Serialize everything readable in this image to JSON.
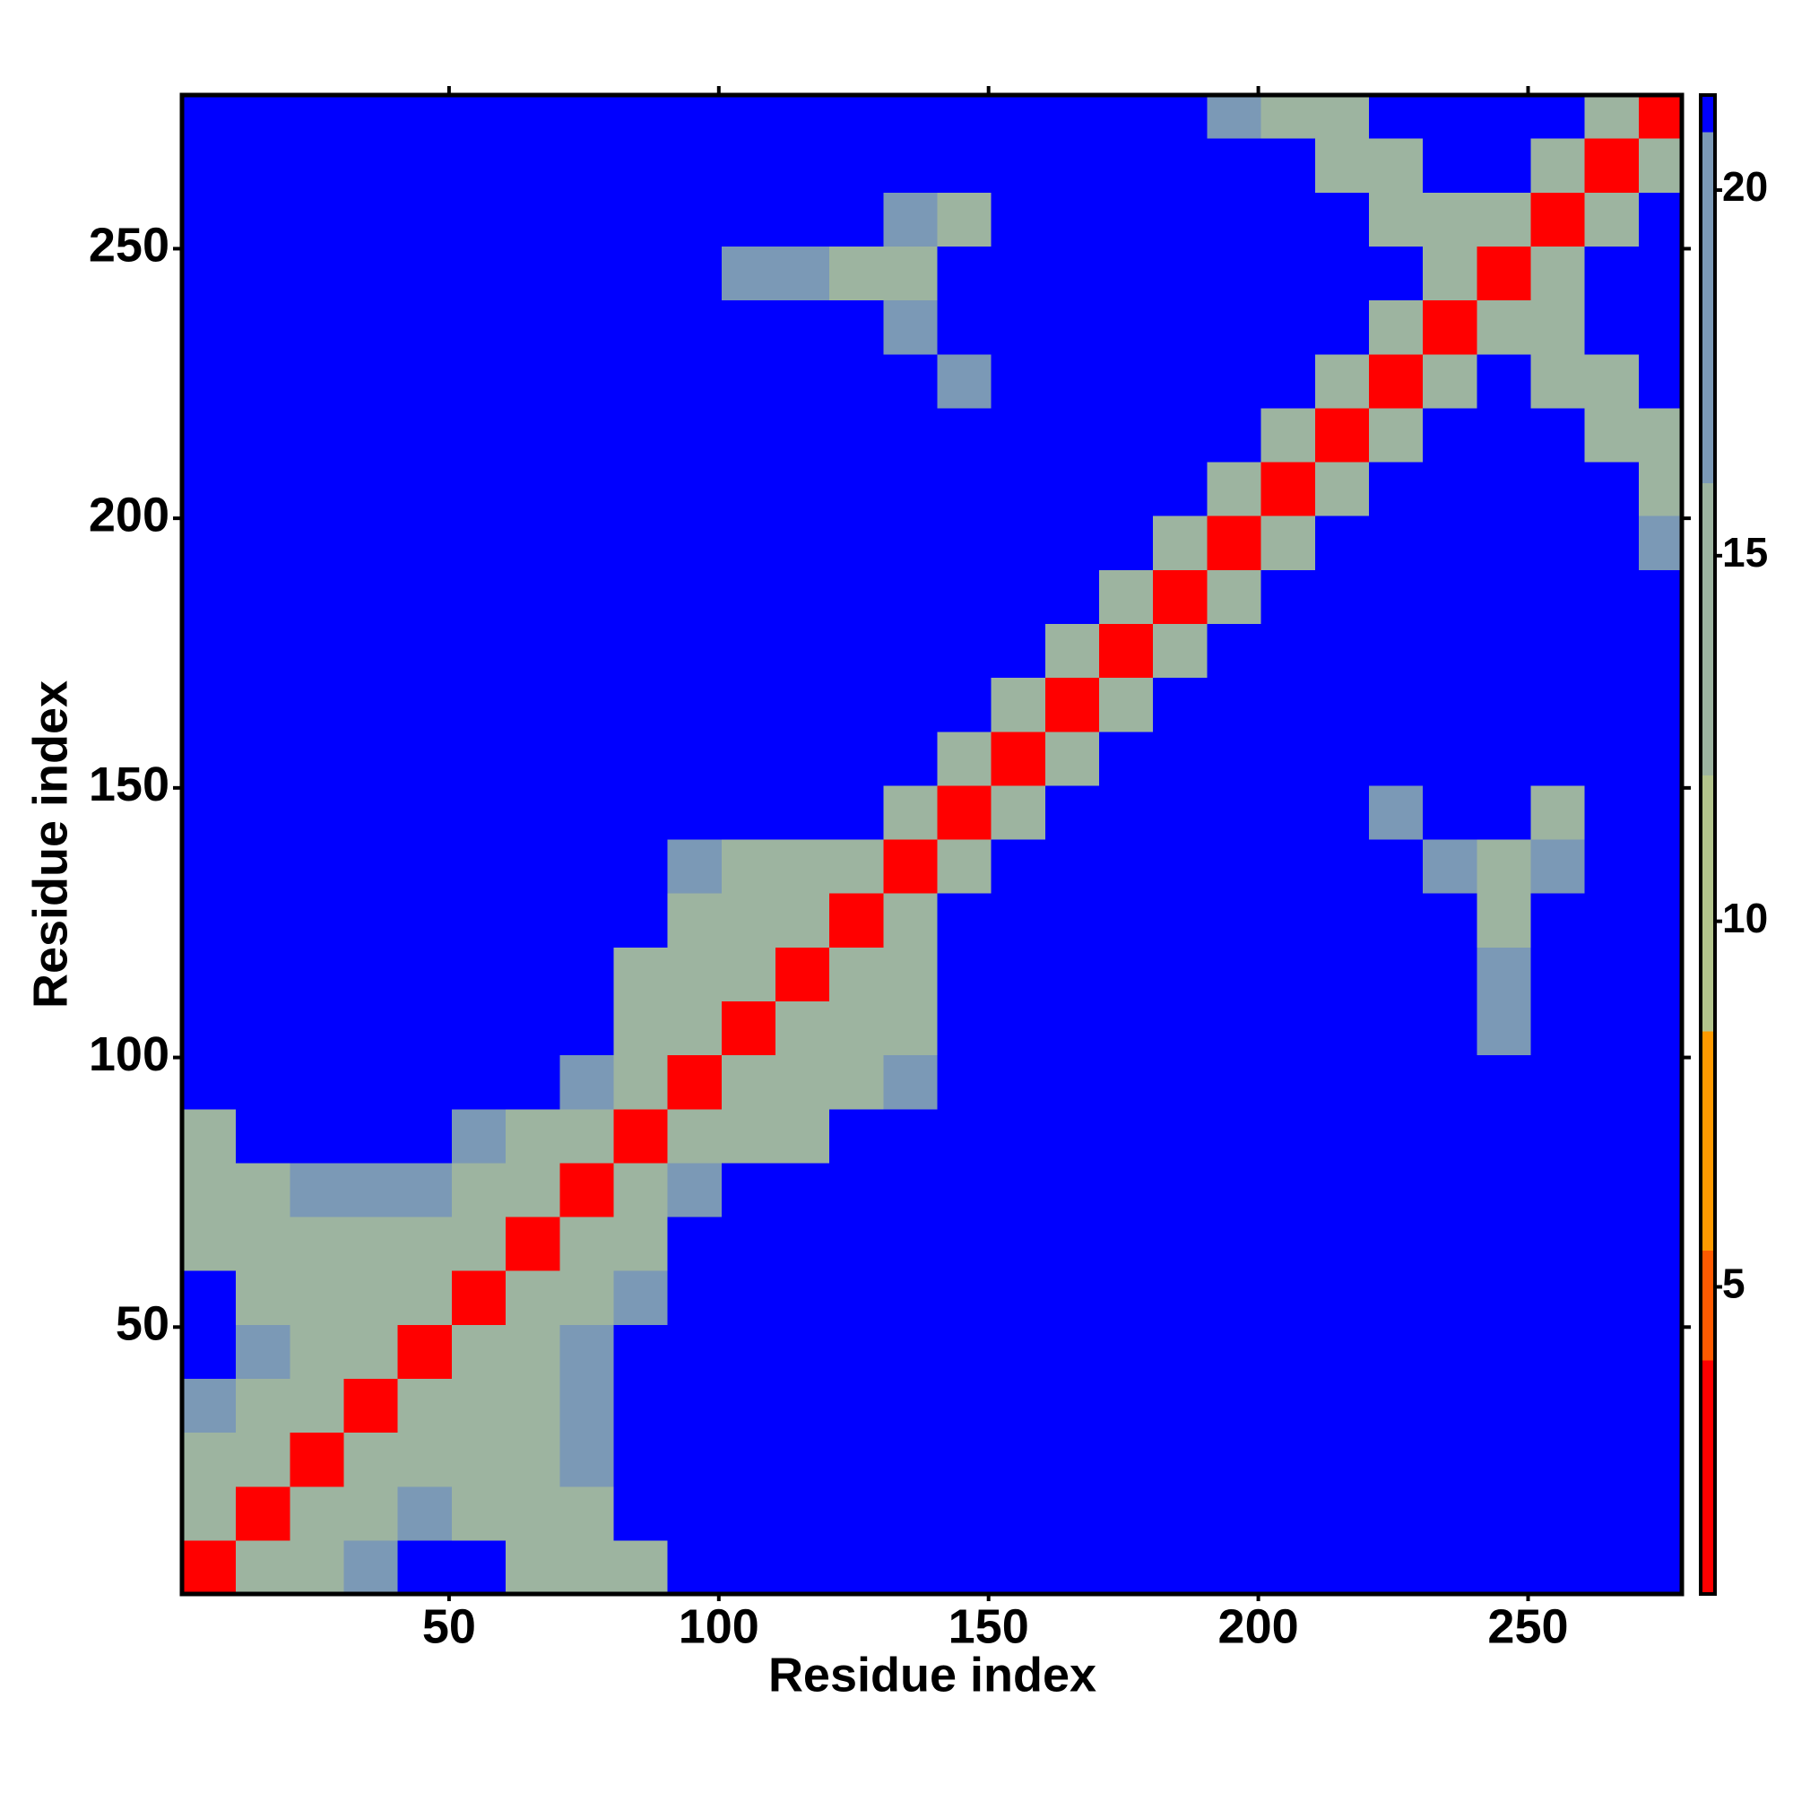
{
  "chart_data": {
    "type": "heatmap",
    "xlabel": "Residue index",
    "ylabel": "Residue index",
    "bins": [
      0.5,
      10.5,
      20.5,
      30.5,
      40.5,
      50.5,
      60.5,
      70.5,
      80.5,
      90.5,
      100.5,
      110.5,
      120.5,
      130.5,
      140.5,
      150.5,
      160.5,
      170.5,
      180.5,
      190.5,
      200.5,
      210.5,
      220.5,
      230.5,
      240.5,
      250.5,
      260.5,
      270.5,
      278.5
    ],
    "values": [
      [
        3,
        13,
        15,
        18,
        21,
        21,
        14,
        13,
        15,
        21,
        21,
        21,
        21,
        21,
        21,
        21,
        21,
        21,
        21,
        21,
        21,
        21,
        21,
        21,
        21,
        21,
        21,
        21
      ],
      [
        13,
        3,
        13,
        14,
        16,
        15,
        12,
        13,
        21,
        21,
        21,
        21,
        21,
        21,
        21,
        21,
        21,
        21,
        21,
        21,
        21,
        21,
        21,
        21,
        21,
        21,
        21,
        21
      ],
      [
        15,
        13,
        3,
        13,
        13,
        12,
        13,
        17,
        21,
        21,
        21,
        21,
        21,
        21,
        21,
        21,
        21,
        21,
        21,
        21,
        21,
        21,
        21,
        21,
        21,
        21,
        21,
        21
      ],
      [
        18,
        14,
        13,
        3,
        13,
        12,
        14,
        16,
        21,
        21,
        21,
        21,
        21,
        21,
        21,
        21,
        21,
        21,
        21,
        21,
        21,
        21,
        21,
        21,
        21,
        21,
        21,
        21
      ],
      [
        21,
        16,
        13,
        13,
        3,
        13,
        13,
        18,
        21,
        21,
        21,
        21,
        21,
        21,
        21,
        21,
        21,
        21,
        21,
        21,
        21,
        21,
        21,
        21,
        21,
        21,
        21,
        21
      ],
      [
        21,
        15,
        12,
        12,
        13,
        3,
        13,
        14,
        17,
        21,
        21,
        21,
        21,
        21,
        21,
        21,
        21,
        21,
        21,
        21,
        21,
        21,
        21,
        21,
        21,
        21,
        21,
        21
      ],
      [
        14,
        12,
        13,
        14,
        13,
        13,
        3,
        13,
        15,
        21,
        21,
        21,
        21,
        21,
        21,
        21,
        21,
        21,
        21,
        21,
        21,
        21,
        21,
        21,
        21,
        21,
        21,
        21
      ],
      [
        13,
        13,
        17,
        16,
        18,
        14,
        13,
        3,
        13,
        18,
        21,
        21,
        21,
        21,
        21,
        21,
        21,
        21,
        21,
        21,
        21,
        21,
        21,
        21,
        21,
        21,
        21,
        21
      ],
      [
        15,
        21,
        21,
        21,
        21,
        17,
        15,
        13,
        3,
        13,
        14,
        15,
        21,
        21,
        21,
        21,
        21,
        21,
        21,
        21,
        21,
        21,
        21,
        21,
        21,
        21,
        21,
        21
      ],
      [
        21,
        21,
        21,
        21,
        21,
        21,
        21,
        18,
        13,
        3,
        13,
        13,
        12,
        17,
        21,
        21,
        21,
        21,
        21,
        21,
        21,
        21,
        21,
        21,
        21,
        21,
        21,
        21
      ],
      [
        21,
        21,
        21,
        21,
        21,
        21,
        21,
        21,
        14,
        13,
        3,
        13,
        12,
        14,
        21,
        21,
        21,
        21,
        21,
        21,
        21,
        21,
        21,
        21,
        17,
        21,
        21,
        21
      ],
      [
        21,
        21,
        21,
        21,
        21,
        21,
        21,
        21,
        15,
        13,
        13,
        3,
        13,
        13,
        21,
        21,
        21,
        21,
        21,
        21,
        21,
        21,
        21,
        21,
        18,
        21,
        21,
        21
      ],
      [
        21,
        21,
        21,
        21,
        21,
        21,
        21,
        21,
        21,
        12,
        12,
        13,
        3,
        13,
        21,
        21,
        21,
        21,
        21,
        21,
        21,
        21,
        21,
        21,
        15,
        21,
        21,
        21
      ],
      [
        21,
        21,
        21,
        21,
        21,
        21,
        21,
        21,
        21,
        17,
        14,
        13,
        13,
        3,
        13,
        21,
        21,
        21,
        21,
        21,
        21,
        21,
        21,
        16,
        14,
        17,
        21,
        21
      ],
      [
        21,
        21,
        21,
        21,
        21,
        21,
        21,
        21,
        21,
        21,
        21,
        21,
        21,
        13,
        3,
        13,
        21,
        21,
        21,
        21,
        21,
        21,
        17,
        21,
        21,
        15,
        21,
        21
      ],
      [
        21,
        21,
        21,
        21,
        21,
        21,
        21,
        21,
        21,
        21,
        21,
        21,
        21,
        21,
        13,
        3,
        13,
        21,
        21,
        21,
        21,
        21,
        21,
        21,
        21,
        21,
        21,
        21
      ],
      [
        21,
        21,
        21,
        21,
        21,
        21,
        21,
        21,
        21,
        21,
        21,
        21,
        21,
        21,
        21,
        13,
        3,
        13,
        21,
        21,
        21,
        21,
        21,
        21,
        21,
        21,
        21,
        21
      ],
      [
        21,
        21,
        21,
        21,
        21,
        21,
        21,
        21,
        21,
        21,
        21,
        21,
        21,
        21,
        21,
        21,
        13,
        3,
        13,
        21,
        21,
        21,
        21,
        21,
        21,
        21,
        21,
        21
      ],
      [
        21,
        21,
        21,
        21,
        21,
        21,
        21,
        21,
        21,
        21,
        21,
        21,
        21,
        21,
        21,
        21,
        21,
        13,
        3,
        13,
        21,
        21,
        21,
        21,
        21,
        21,
        21,
        21
      ],
      [
        21,
        21,
        21,
        21,
        21,
        21,
        21,
        21,
        21,
        21,
        21,
        21,
        21,
        21,
        21,
        21,
        21,
        21,
        13,
        3,
        13,
        21,
        21,
        21,
        21,
        21,
        21,
        17
      ],
      [
        21,
        21,
        21,
        21,
        21,
        21,
        21,
        21,
        21,
        21,
        21,
        21,
        21,
        21,
        21,
        21,
        21,
        21,
        21,
        13,
        3,
        13,
        21,
        21,
        21,
        21,
        21,
        14
      ],
      [
        21,
        21,
        21,
        21,
        21,
        21,
        21,
        21,
        21,
        21,
        21,
        21,
        21,
        21,
        21,
        21,
        21,
        21,
        21,
        21,
        13,
        3,
        13,
        21,
        21,
        21,
        14,
        14
      ],
      [
        21,
        21,
        21,
        21,
        21,
        21,
        21,
        21,
        21,
        21,
        21,
        21,
        21,
        21,
        17,
        21,
        21,
        21,
        21,
        21,
        21,
        13,
        3,
        13,
        21,
        14,
        14,
        21
      ],
      [
        21,
        21,
        21,
        21,
        21,
        21,
        21,
        21,
        21,
        21,
        21,
        21,
        21,
        16,
        21,
        21,
        21,
        21,
        21,
        21,
        21,
        21,
        13,
        3,
        13,
        14,
        21,
        21
      ],
      [
        21,
        21,
        21,
        21,
        21,
        21,
        21,
        21,
        21,
        21,
        17,
        18,
        15,
        14,
        21,
        21,
        21,
        21,
        21,
        21,
        21,
        21,
        21,
        13,
        3,
        13,
        21,
        21
      ],
      [
        21,
        21,
        21,
        21,
        21,
        21,
        21,
        21,
        21,
        21,
        21,
        21,
        21,
        17,
        15,
        21,
        21,
        21,
        21,
        21,
        21,
        21,
        14,
        14,
        13,
        3,
        13,
        21
      ],
      [
        21,
        21,
        21,
        21,
        21,
        21,
        21,
        21,
        21,
        21,
        21,
        21,
        21,
        21,
        21,
        21,
        21,
        21,
        21,
        21,
        21,
        14,
        14,
        21,
        21,
        13,
        3,
        13
      ],
      [
        21,
        21,
        21,
        21,
        21,
        21,
        21,
        21,
        21,
        21,
        21,
        21,
        21,
        21,
        21,
        21,
        21,
        21,
        21,
        17,
        14,
        14,
        21,
        21,
        21,
        21,
        13,
        3
      ]
    ],
    "xlim": [
      0.5,
      278.5
    ],
    "ylim": [
      0.5,
      278.5
    ],
    "xticks": [
      50,
      100,
      150,
      200,
      250
    ],
    "yticks": [
      50,
      100,
      150,
      200,
      250
    ],
    "zlim": [
      0.8,
      21.3
    ],
    "colorbar_ticks": [
      5,
      10,
      15,
      20
    ],
    "colorscale": [
      {
        "value": 0.8,
        "color": "#ff0000"
      },
      {
        "value": 4,
        "color": "#ff5a00"
      },
      {
        "value": 5.5,
        "color": "#ff9a00"
      },
      {
        "value": 8.5,
        "color": "#b3c48c"
      },
      {
        "value": 12,
        "color": "#9db4a0"
      },
      {
        "value": 16,
        "color": "#7b99b6"
      },
      {
        "value": 20.8,
        "color": "#0000ff"
      }
    ]
  }
}
